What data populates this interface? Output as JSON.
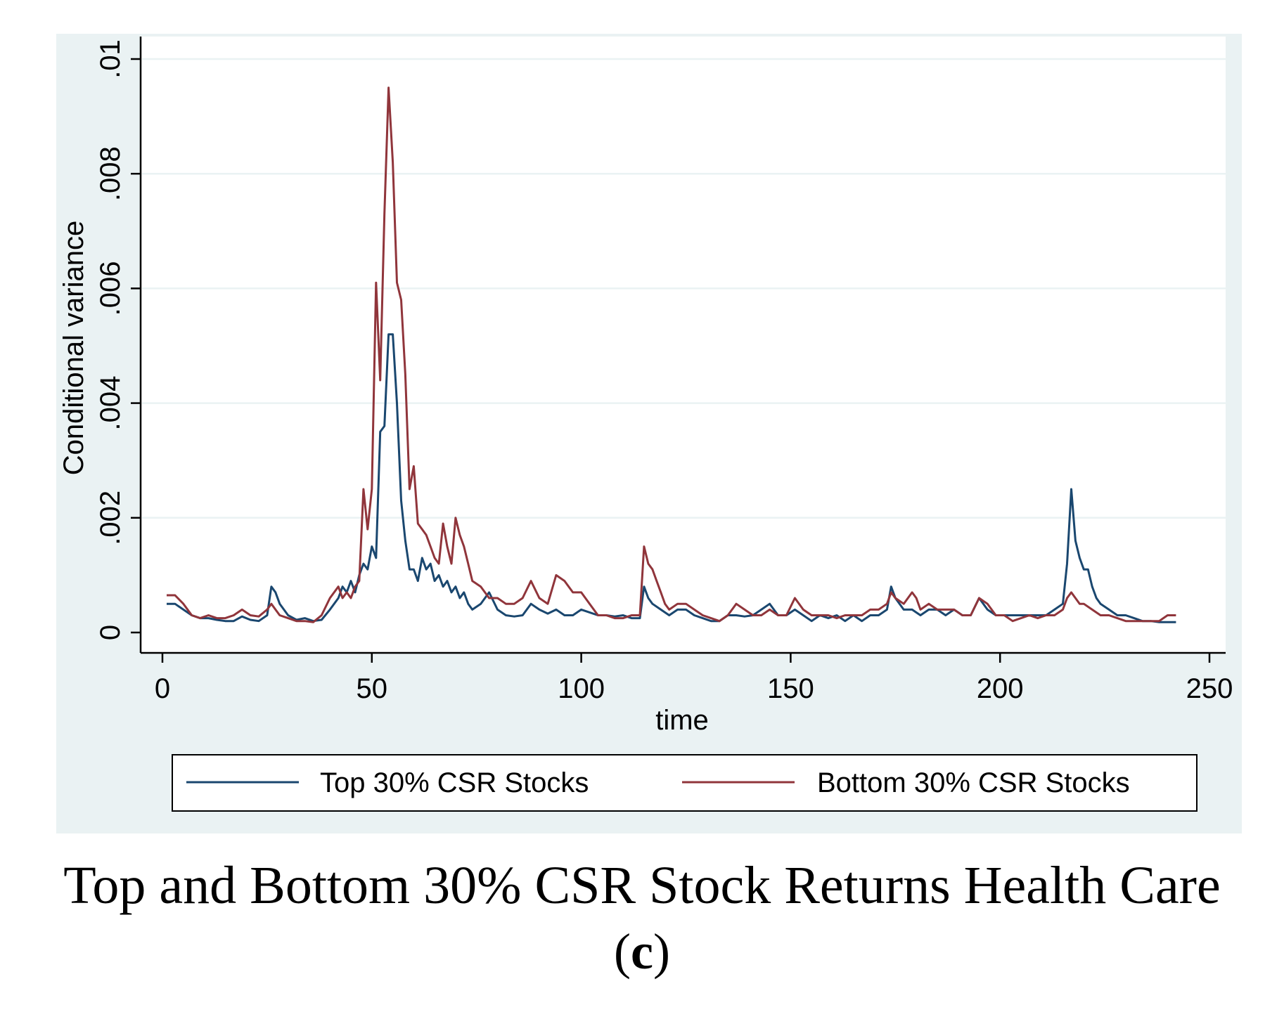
{
  "caption": "Top and Bottom 30% CSR Stock Returns Health Care",
  "panel_label_open": "(",
  "panel_label": "c",
  "panel_label_close": ")",
  "colors": {
    "panel_background": "#eaf2f3",
    "plot_background": "#ffffff",
    "gridline": "#eaf2f3",
    "top_series": "#1a476f",
    "bottom_series": "#90353b"
  },
  "chart_data": {
    "type": "line",
    "title": "",
    "xlabel": "time",
    "ylabel": "Conditional variance",
    "xlim": [
      0,
      250
    ],
    "ylim": [
      0,
      0.01
    ],
    "x_ticks": [
      0,
      50,
      100,
      150,
      200,
      250
    ],
    "x_tick_labels": [
      "0",
      "50",
      "100",
      "150",
      "200",
      "250"
    ],
    "y_ticks": [
      0,
      0.002,
      0.004,
      0.006,
      0.008,
      0.01
    ],
    "y_tick_labels": [
      "0",
      ".002",
      ".004",
      ".006",
      ".008",
      ".01"
    ],
    "grid": "horizontal",
    "legend_position": "bottom",
    "series": [
      {
        "name": "Top 30% CSR Stocks",
        "color": "#1a476f",
        "points": [
          [
            1,
            0.0005
          ],
          [
            3,
            0.0005
          ],
          [
            5,
            0.0004
          ],
          [
            7,
            0.0003
          ],
          [
            9,
            0.00025
          ],
          [
            11,
            0.00025
          ],
          [
            13,
            0.00022
          ],
          [
            15,
            0.0002
          ],
          [
            17,
            0.0002
          ],
          [
            19,
            0.00028
          ],
          [
            21,
            0.00022
          ],
          [
            23,
            0.0002
          ],
          [
            25,
            0.0003
          ],
          [
            26,
            0.0008
          ],
          [
            27,
            0.0007
          ],
          [
            28,
            0.0005
          ],
          [
            30,
            0.0003
          ],
          [
            32,
            0.00022
          ],
          [
            34,
            0.00025
          ],
          [
            36,
            0.0002
          ],
          [
            38,
            0.00022
          ],
          [
            40,
            0.0004
          ],
          [
            42,
            0.0006
          ],
          [
            43,
            0.0008
          ],
          [
            44,
            0.0007
          ],
          [
            45,
            0.0009
          ],
          [
            46,
            0.0007
          ],
          [
            47,
            0.001
          ],
          [
            48,
            0.0012
          ],
          [
            49,
            0.0011
          ],
          [
            50,
            0.0015
          ],
          [
            51,
            0.0013
          ],
          [
            52,
            0.0035
          ],
          [
            53,
            0.0036
          ],
          [
            54,
            0.0052
          ],
          [
            55,
            0.0052
          ],
          [
            56,
            0.004
          ],
          [
            57,
            0.0023
          ],
          [
            58,
            0.0016
          ],
          [
            59,
            0.0011
          ],
          [
            60,
            0.0011
          ],
          [
            61,
            0.0009
          ],
          [
            62,
            0.0013
          ],
          [
            63,
            0.0011
          ],
          [
            64,
            0.0012
          ],
          [
            65,
            0.0009
          ],
          [
            66,
            0.001
          ],
          [
            67,
            0.0008
          ],
          [
            68,
            0.0009
          ],
          [
            69,
            0.0007
          ],
          [
            70,
            0.0008
          ],
          [
            71,
            0.0006
          ],
          [
            72,
            0.0007
          ],
          [
            73,
            0.0005
          ],
          [
            74,
            0.0004
          ],
          [
            76,
            0.0005
          ],
          [
            78,
            0.0007
          ],
          [
            80,
            0.0004
          ],
          [
            82,
            0.0003
          ],
          [
            84,
            0.00028
          ],
          [
            86,
            0.0003
          ],
          [
            88,
            0.0005
          ],
          [
            90,
            0.0004
          ],
          [
            92,
            0.00033
          ],
          [
            94,
            0.0004
          ],
          [
            96,
            0.0003
          ],
          [
            98,
            0.0003
          ],
          [
            100,
            0.0004
          ],
          [
            102,
            0.00035
          ],
          [
            104,
            0.0003
          ],
          [
            106,
            0.0003
          ],
          [
            108,
            0.00028
          ],
          [
            110,
            0.0003
          ],
          [
            112,
            0.00025
          ],
          [
            114,
            0.00025
          ],
          [
            115,
            0.0008
          ],
          [
            116,
            0.0006
          ],
          [
            117,
            0.0005
          ],
          [
            119,
            0.0004
          ],
          [
            121,
            0.0003
          ],
          [
            123,
            0.0004
          ],
          [
            125,
            0.0004
          ],
          [
            127,
            0.0003
          ],
          [
            129,
            0.00025
          ],
          [
            131,
            0.0002
          ],
          [
            133,
            0.0002
          ],
          [
            135,
            0.0003
          ],
          [
            137,
            0.0003
          ],
          [
            139,
            0.00028
          ],
          [
            141,
            0.0003
          ],
          [
            143,
            0.0004
          ],
          [
            145,
            0.0005
          ],
          [
            147,
            0.0003
          ],
          [
            149,
            0.0003
          ],
          [
            151,
            0.0004
          ],
          [
            153,
            0.0003
          ],
          [
            155,
            0.0002
          ],
          [
            157,
            0.0003
          ],
          [
            159,
            0.00025
          ],
          [
            161,
            0.0003
          ],
          [
            163,
            0.0002
          ],
          [
            165,
            0.0003
          ],
          [
            167,
            0.0002
          ],
          [
            169,
            0.0003
          ],
          [
            171,
            0.0003
          ],
          [
            173,
            0.0004
          ],
          [
            174,
            0.0008
          ],
          [
            175,
            0.0006
          ],
          [
            177,
            0.0004
          ],
          [
            179,
            0.0004
          ],
          [
            181,
            0.0003
          ],
          [
            183,
            0.0004
          ],
          [
            185,
            0.0004
          ],
          [
            187,
            0.0003
          ],
          [
            189,
            0.0004
          ],
          [
            191,
            0.0003
          ],
          [
            193,
            0.0003
          ],
          [
            195,
            0.0006
          ],
          [
            197,
            0.0004
          ],
          [
            199,
            0.0003
          ],
          [
            201,
            0.0003
          ],
          [
            203,
            0.0003
          ],
          [
            205,
            0.0003
          ],
          [
            207,
            0.0003
          ],
          [
            209,
            0.0003
          ],
          [
            211,
            0.0003
          ],
          [
            213,
            0.0004
          ],
          [
            215,
            0.0005
          ],
          [
            216,
            0.0012
          ],
          [
            217,
            0.0025
          ],
          [
            218,
            0.0016
          ],
          [
            219,
            0.0013
          ],
          [
            220,
            0.0011
          ],
          [
            221,
            0.0011
          ],
          [
            222,
            0.0008
          ],
          [
            223,
            0.0006
          ],
          [
            224,
            0.0005
          ],
          [
            226,
            0.0004
          ],
          [
            228,
            0.0003
          ],
          [
            230,
            0.0003
          ],
          [
            232,
            0.00025
          ],
          [
            234,
            0.0002
          ],
          [
            236,
            0.0002
          ],
          [
            238,
            0.00018
          ],
          [
            240,
            0.00018
          ],
          [
            242,
            0.00018
          ]
        ]
      },
      {
        "name": "Bottom 30% CSR Stocks",
        "color": "#90353b",
        "points": [
          [
            1,
            0.00065
          ],
          [
            3,
            0.00065
          ],
          [
            5,
            0.0005
          ],
          [
            7,
            0.0003
          ],
          [
            9,
            0.00025
          ],
          [
            11,
            0.0003
          ],
          [
            13,
            0.00025
          ],
          [
            15,
            0.00025
          ],
          [
            17,
            0.0003
          ],
          [
            19,
            0.0004
          ],
          [
            21,
            0.0003
          ],
          [
            23,
            0.00028
          ],
          [
            25,
            0.0004
          ],
          [
            26,
            0.0005
          ],
          [
            27,
            0.0004
          ],
          [
            28,
            0.0003
          ],
          [
            30,
            0.00025
          ],
          [
            32,
            0.0002
          ],
          [
            34,
            0.0002
          ],
          [
            36,
            0.00018
          ],
          [
            38,
            0.0003
          ],
          [
            40,
            0.0006
          ],
          [
            42,
            0.0008
          ],
          [
            43,
            0.0006
          ],
          [
            44,
            0.0007
          ],
          [
            45,
            0.0006
          ],
          [
            46,
            0.0008
          ],
          [
            47,
            0.0009
          ],
          [
            48,
            0.0025
          ],
          [
            49,
            0.0018
          ],
          [
            50,
            0.0025
          ],
          [
            51,
            0.0061
          ],
          [
            52,
            0.0044
          ],
          [
            53,
            0.0073
          ],
          [
            54,
            0.0095
          ],
          [
            55,
            0.0082
          ],
          [
            56,
            0.0061
          ],
          [
            57,
            0.0058
          ],
          [
            58,
            0.0045
          ],
          [
            59,
            0.0025
          ],
          [
            60,
            0.0029
          ],
          [
            61,
            0.0019
          ],
          [
            62,
            0.0018
          ],
          [
            63,
            0.0017
          ],
          [
            64,
            0.0015
          ],
          [
            65,
            0.0013
          ],
          [
            66,
            0.0012
          ],
          [
            67,
            0.0019
          ],
          [
            68,
            0.0015
          ],
          [
            69,
            0.0012
          ],
          [
            70,
            0.002
          ],
          [
            71,
            0.0017
          ],
          [
            72,
            0.0015
          ],
          [
            73,
            0.0012
          ],
          [
            74,
            0.0009
          ],
          [
            76,
            0.0008
          ],
          [
            78,
            0.0006
          ],
          [
            80,
            0.0006
          ],
          [
            82,
            0.0005
          ],
          [
            84,
            0.0005
          ],
          [
            86,
            0.0006
          ],
          [
            88,
            0.0009
          ],
          [
            90,
            0.0006
          ],
          [
            92,
            0.0005
          ],
          [
            94,
            0.001
          ],
          [
            96,
            0.0009
          ],
          [
            98,
            0.0007
          ],
          [
            100,
            0.0007
          ],
          [
            102,
            0.0005
          ],
          [
            104,
            0.0003
          ],
          [
            106,
            0.0003
          ],
          [
            108,
            0.00025
          ],
          [
            110,
            0.00025
          ],
          [
            112,
            0.0003
          ],
          [
            114,
            0.0003
          ],
          [
            115,
            0.0015
          ],
          [
            116,
            0.0012
          ],
          [
            117,
            0.0011
          ],
          [
            118,
            0.0009
          ],
          [
            119,
            0.0007
          ],
          [
            120,
            0.0005
          ],
          [
            121,
            0.0004
          ],
          [
            123,
            0.0005
          ],
          [
            125,
            0.0005
          ],
          [
            127,
            0.0004
          ],
          [
            129,
            0.0003
          ],
          [
            131,
            0.00025
          ],
          [
            133,
            0.0002
          ],
          [
            135,
            0.0003
          ],
          [
            137,
            0.0005
          ],
          [
            139,
            0.0004
          ],
          [
            141,
            0.0003
          ],
          [
            143,
            0.0003
          ],
          [
            145,
            0.0004
          ],
          [
            147,
            0.0003
          ],
          [
            149,
            0.0003
          ],
          [
            151,
            0.0006
          ],
          [
            153,
            0.0004
          ],
          [
            155,
            0.0003
          ],
          [
            157,
            0.0003
          ],
          [
            159,
            0.0003
          ],
          [
            161,
            0.00025
          ],
          [
            163,
            0.0003
          ],
          [
            165,
            0.0003
          ],
          [
            167,
            0.0003
          ],
          [
            169,
            0.0004
          ],
          [
            171,
            0.0004
          ],
          [
            173,
            0.0005
          ],
          [
            174,
            0.0007
          ],
          [
            175,
            0.0006
          ],
          [
            177,
            0.0005
          ],
          [
            179,
            0.0007
          ],
          [
            180,
            0.0006
          ],
          [
            181,
            0.0004
          ],
          [
            183,
            0.0005
          ],
          [
            185,
            0.0004
          ],
          [
            187,
            0.0004
          ],
          [
            189,
            0.0004
          ],
          [
            191,
            0.0003
          ],
          [
            193,
            0.0003
          ],
          [
            195,
            0.0006
          ],
          [
            197,
            0.0005
          ],
          [
            199,
            0.0003
          ],
          [
            201,
            0.0003
          ],
          [
            203,
            0.0002
          ],
          [
            205,
            0.00025
          ],
          [
            207,
            0.0003
          ],
          [
            209,
            0.00025
          ],
          [
            211,
            0.0003
          ],
          [
            213,
            0.0003
          ],
          [
            215,
            0.0004
          ],
          [
            216,
            0.0006
          ],
          [
            217,
            0.0007
          ],
          [
            218,
            0.0006
          ],
          [
            219,
            0.0005
          ],
          [
            220,
            0.0005
          ],
          [
            222,
            0.0004
          ],
          [
            224,
            0.0003
          ],
          [
            226,
            0.0003
          ],
          [
            228,
            0.00025
          ],
          [
            230,
            0.0002
          ],
          [
            232,
            0.0002
          ],
          [
            234,
            0.0002
          ],
          [
            236,
            0.0002
          ],
          [
            238,
            0.0002
          ],
          [
            240,
            0.0003
          ],
          [
            242,
            0.0003
          ]
        ]
      }
    ]
  }
}
